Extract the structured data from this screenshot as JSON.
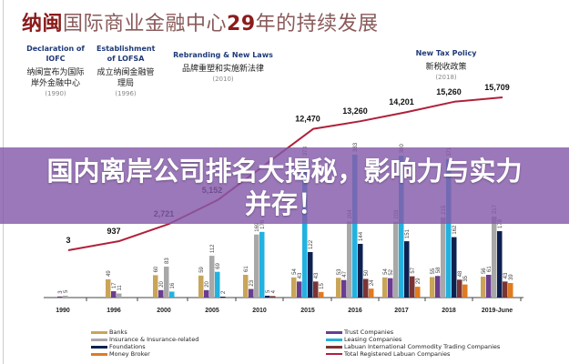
{
  "title": {
    "highlight": "纳闽",
    "part1": "国际商业金融中心",
    "number": "29",
    "part2": "年的持续发展"
  },
  "annotations": [
    {
      "en": "Declaration of IOFC",
      "cn": "纳闽宣布为国际岸外金融中心",
      "year": "(1990)"
    },
    {
      "en": "Establishment of LOFSA",
      "cn": "成立纳闽金融管理局",
      "year": "(1996)"
    },
    {
      "en": "Rebranding & New Laws",
      "cn": "品牌重塑和实施新法律",
      "year": "(2010)"
    },
    {
      "en": "New Tax Policy",
      "cn": "新税收政策",
      "year": "(2018)"
    }
  ],
  "banner": {
    "line1": "国内离岸公司排名大揭秘，影响力与实力",
    "line2": "并存！"
  },
  "chart_data": {
    "type": "bar",
    "categories": [
      "1990",
      "1996",
      "2000",
      "2005",
      "2010",
      "2015",
      "2016",
      "2017",
      "2018",
      "2019-June"
    ],
    "series": [
      {
        "name": "Banks",
        "color": "#c9a55a",
        "values": [
          null,
          49,
          60,
          59,
          61,
          54,
          53,
          54,
          55,
          56
        ]
      },
      {
        "name": "Trust Companies",
        "color": "#6a3d8f",
        "values": [
          3,
          17,
          20,
          20,
          23,
          43,
          47,
          52,
          58,
          61
        ]
      },
      {
        "name": "Insurance & Insurance-related",
        "color": "#a8a8a8",
        "values": [
          5,
          11,
          83,
          112,
          169,
          null,
          204,
          203,
          215,
          217
        ]
      },
      {
        "name": "Leasing Companies",
        "color": "#22b2e0",
        "values": [
          null,
          null,
          16,
          69,
          176,
          373,
          383,
          380,
          371,
          null
        ]
      },
      {
        "name": "Foundations",
        "color": "#0d2150",
        "values": [
          null,
          null,
          null,
          2,
          5,
          122,
          144,
          151,
          162,
          178
        ]
      },
      {
        "name": "Labuan International Commodity Trading Companies",
        "color": "#7a3434",
        "values": [
          null,
          null,
          null,
          null,
          4,
          43,
          50,
          57,
          48,
          43
        ]
      },
      {
        "name": "Money Broker",
        "color": "#e07b20",
        "values": [
          null,
          null,
          null,
          null,
          null,
          15,
          24,
          29,
          35,
          39
        ]
      }
    ],
    "line": {
      "name": "Total Registered Labuan Companies",
      "color": "#b0203a",
      "values": [
        3,
        937,
        2721,
        5152,
        12470,
        13260,
        14201,
        15260,
        15709
      ],
      "categories": [
        "1990",
        "1996",
        "2000",
        "2005",
        "2015",
        "2016",
        "2017",
        "2018",
        "2019-June"
      ],
      "labels": [
        "3",
        "937",
        "2,721",
        "5,152",
        "12,470",
        "13,260",
        "14,201",
        "15,260",
        "15,709"
      ]
    },
    "grid": false,
    "legend_position": "bottom"
  }
}
